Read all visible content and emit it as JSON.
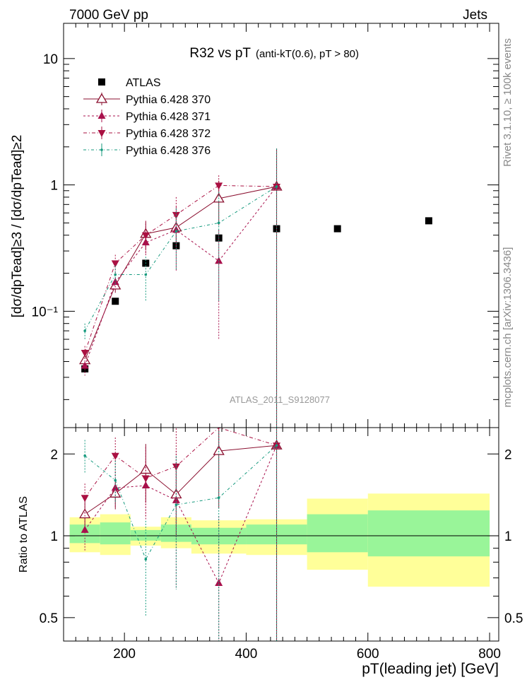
{
  "header": {
    "left": "7000 GeV pp",
    "right": "Jets"
  },
  "side_labels": {
    "rivet": "Rivet 3.1.10, ≥ 100k events",
    "mcplots": "mcplots.cern.ch [arXiv:1306.3436]"
  },
  "chart_data": [
    {
      "type": "scatter",
      "title": "R32 vs pT",
      "subtitle": "(anti-kT(0.6), pT > 80)",
      "watermark": "ATLAS_2011_S9128077",
      "ylabel": "[dσ/dpTead]≥3 / [dσ/dpTead]≥2",
      "yscale": "log",
      "ylim": [
        0.012,
        19
      ],
      "xlim": [
        100,
        815
      ],
      "y_ticks": [
        {
          "v": 10,
          "label": "10"
        },
        {
          "v": 1,
          "label": "1"
        },
        {
          "v": 0.1,
          "label": "10⁻¹"
        }
      ],
      "legend_position": "top-left",
      "series": [
        {
          "name": "ATLAS",
          "style": "data",
          "color": "#000000",
          "x": [
            135,
            185,
            235,
            285,
            355,
            450,
            550,
            700
          ],
          "y": [
            0.035,
            0.12,
            0.24,
            0.33,
            0.38,
            0.45,
            0.45,
            0.52
          ]
        },
        {
          "name": "Pythia 6.428 370",
          "style": "open-triangle",
          "dash": "none",
          "color": "#8b1030",
          "x": [
            135,
            185,
            235,
            285,
            355,
            450
          ],
          "y": [
            0.041,
            0.16,
            0.41,
            0.46,
            0.78,
            0.97
          ],
          "err": [
            0.005,
            0.02,
            0.1,
            0.14,
            0.3,
            0.97
          ]
        },
        {
          "name": "Pythia 6.428 371",
          "style": "triangle",
          "dash": "3,3",
          "color": "#a8104c",
          "x": [
            135,
            185,
            235,
            285,
            355,
            450
          ],
          "y": [
            0.037,
            0.17,
            0.35,
            0.44,
            0.25,
            0.97
          ],
          "err": [
            0.006,
            0.025,
            0.08,
            0.23,
            0.19,
            0.97
          ]
        },
        {
          "name": "Pythia 6.428 372",
          "style": "down-triangle",
          "dash": "5,3,1,3",
          "color": "#aa1042",
          "x": [
            135,
            185,
            235,
            285,
            355,
            450
          ],
          "y": [
            0.047,
            0.24,
            0.4,
            0.58,
            0.99,
            0.97
          ],
          "err": [
            0.006,
            0.04,
            0.12,
            0.22,
            0.2,
            0.97
          ]
        },
        {
          "name": "Pythia 6.428 376",
          "style": "dot",
          "dash": "4,3,1,3",
          "color": "#159a7e",
          "x": [
            135,
            185,
            235,
            285,
            355,
            450
          ],
          "y": [
            0.07,
            0.195,
            0.195,
            0.43,
            0.5,
            0.97
          ],
          "err": [
            0.01,
            0.035,
            0.075,
            0.22,
            0.38,
            0.97
          ]
        }
      ]
    },
    {
      "type": "scatter",
      "ylabel": "Ratio to ATLAS",
      "xlabel": "pT(leading jet) [GeV]",
      "yscale": "log",
      "ylim": [
        0.41,
        2.5
      ],
      "xlim": [
        100,
        815
      ],
      "x_ticks": [
        200,
        400,
        600,
        800
      ],
      "y_ticks": [
        {
          "v": 2,
          "label": "2"
        },
        {
          "v": 1,
          "label": "1"
        },
        {
          "v": 0.5,
          "label": "0.5"
        }
      ],
      "bands": [
        {
          "x": [
            110,
            160
          ],
          "yellow": [
            0.87,
            1.17
          ],
          "green": [
            0.94,
            1.1
          ]
        },
        {
          "x": [
            160,
            210
          ],
          "yellow": [
            0.85,
            1.2
          ],
          "green": [
            0.93,
            1.12
          ]
        },
        {
          "x": [
            210,
            260
          ],
          "yellow": [
            0.92,
            1.08
          ],
          "green": [
            0.96,
            1.05
          ]
        },
        {
          "x": [
            260,
            310
          ],
          "yellow": [
            0.9,
            1.17
          ],
          "green": [
            0.95,
            1.1
          ]
        },
        {
          "x": [
            310,
            400
          ],
          "yellow": [
            0.86,
            1.14
          ],
          "green": [
            0.93,
            1.07
          ]
        },
        {
          "x": [
            400,
            500
          ],
          "yellow": [
            0.85,
            1.15
          ],
          "green": [
            0.93,
            1.1
          ]
        },
        {
          "x": [
            500,
            600
          ],
          "yellow": [
            0.75,
            1.37
          ],
          "green": [
            0.87,
            1.2
          ]
        },
        {
          "x": [
            600,
            800
          ],
          "yellow": [
            0.65,
            1.43
          ],
          "green": [
            0.84,
            1.24
          ]
        }
      ],
      "series": [
        {
          "name": "Pythia 6.428 370",
          "x": [
            135,
            185,
            235,
            285,
            355,
            450
          ],
          "y": [
            1.2,
            1.43,
            1.75,
            1.42,
            2.05,
            2.15
          ]
        },
        {
          "name": "Pythia 6.428 371",
          "x": [
            135,
            185,
            235,
            285,
            355,
            450
          ],
          "y": [
            1.05,
            1.5,
            1.53,
            1.35,
            0.67,
            2.15
          ]
        },
        {
          "name": "Pythia 6.428 372",
          "x": [
            135,
            185,
            235,
            285,
            355,
            450
          ],
          "y": [
            1.38,
            1.97,
            1.63,
            1.8,
            2.6,
            2.15
          ]
        },
        {
          "name": "Pythia 6.428 376",
          "x": [
            135,
            185,
            235,
            285,
            355,
            450
          ],
          "y": [
            1.97,
            1.6,
            0.82,
            1.3,
            1.38,
            2.15
          ]
        }
      ]
    }
  ]
}
